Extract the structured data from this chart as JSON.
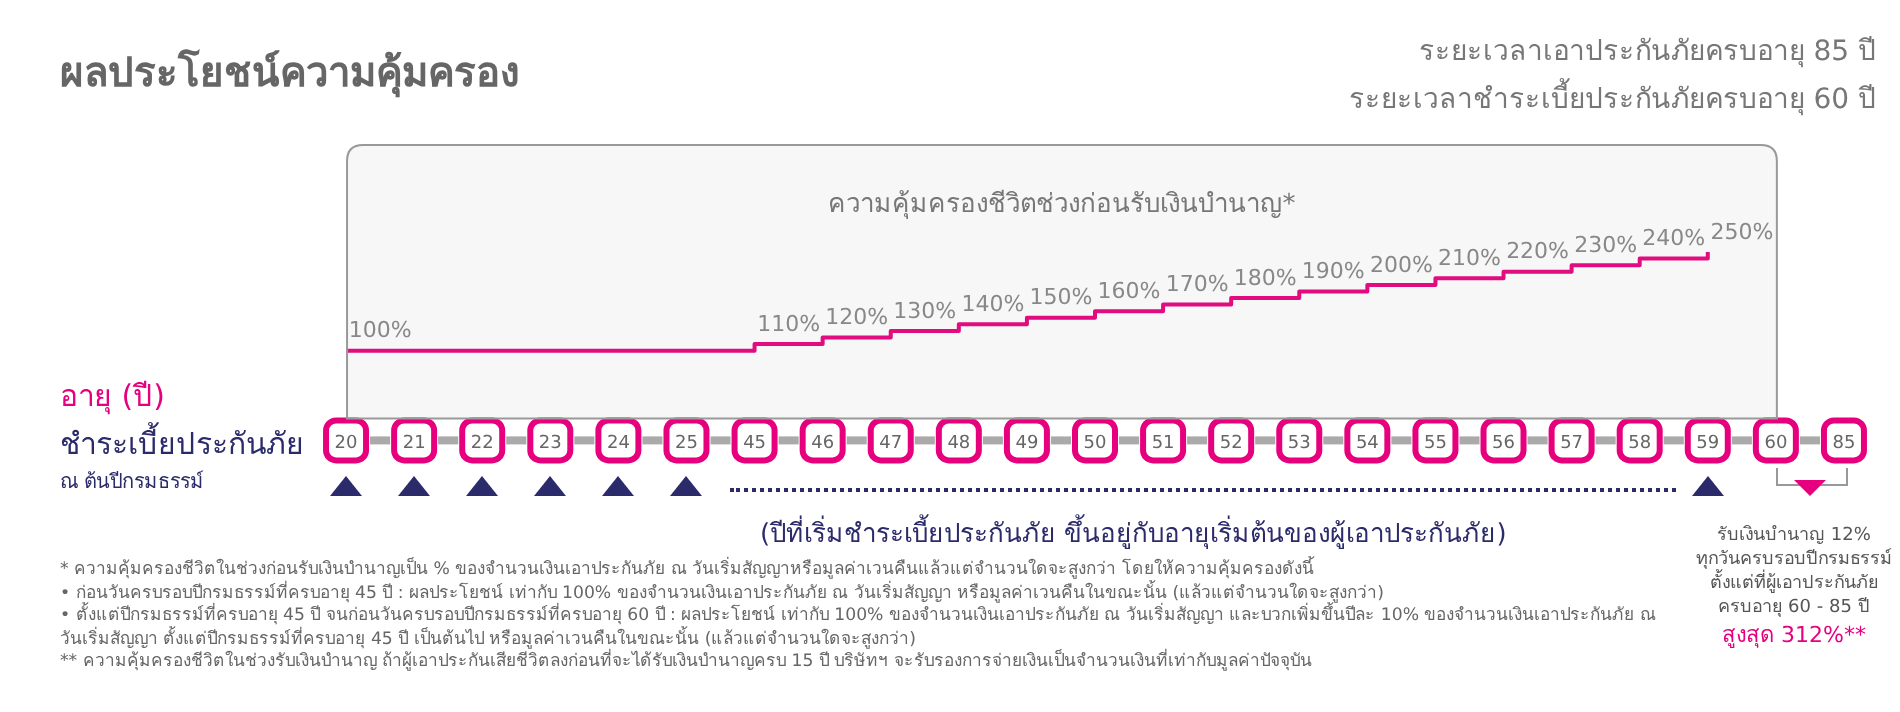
{
  "chart_data": {
    "type": "step",
    "title": "ผลประโยชน์ความคุ้มครอง",
    "bands": [
      {
        "axis": "x",
        "from": "20",
        "to": "60",
        "label": "ความคุ้มครองชีวิตช่วงก่อนรับเงินบำนาญ*",
        "color": "#999999"
      }
    ],
    "xlabel": "อายุ (ปี)",
    "categories": [
      "20",
      "21",
      "22",
      "23",
      "24",
      "25",
      "45",
      "46",
      "47",
      "48",
      "49",
      "50",
      "51",
      "52",
      "53",
      "54",
      "55",
      "56",
      "57",
      "58",
      "59",
      "60",
      "85"
    ],
    "series": [
      {
        "color": "#e6007e",
        "values": [
          100,
          100,
          100,
          100,
          100,
          100,
          110,
          120,
          130,
          140,
          150,
          160,
          170,
          180,
          190,
          200,
          210,
          220,
          230,
          240,
          250,
          null,
          null
        ],
        "value_labels": [
          "100%",
          null,
          null,
          null,
          null,
          null,
          "110%",
          "120%",
          "130%",
          "140%",
          "150%",
          "160%",
          "170%",
          "180%",
          "190%",
          "200%",
          "210%",
          "220%",
          "230%",
          "240%",
          "250%",
          null,
          null
        ]
      }
    ],
    "tick_labels": "x",
    "grid": false,
    "legend": false,
    "marker": "none",
    "line_style": "solid",
    "annotations": [
      "ระยะเวลาเอาประกันภัยครบอายุ 85 ปี",
      "ระยะเวลาชำระเบี้ยประกันภัยครบอายุ 60 ปี",
      "ชำระเบี้ยประกันภัย",
      "ณ ต้นปีกรมธรรม์",
      "(ปีที่เริ่มชำระเบี้ยประกันภัย ขึ้นอยู่กับอายุเริ่มต้นของผู้เอาประกันภัย)",
      "รับเงินบำนาญ 12%",
      "ทุกวันครบรอบปีกรมธรรม์",
      "ตั้งแต่ที่ผู้เอาประกันภัย",
      "ครบอายุ 60 - 85 ปี",
      "สูงสุด 312%**",
      "* ความคุ้มครองชีวิตในช่วงก่อนรับเงินบำนาญเป็น % ของจำนวนเงินเอาประกันภัย ณ วันเริ่มสัญญาหรือมูลค่าเวนคืนแล้วแต่จำนวนใดจะสูงกว่า โดยให้ความคุ้มครองดังนี้",
      "• ก่อนวันครบรอบปีกรมธรรม์ที่ครบอายุ 45 ปี : ผลประโยชน์ เท่ากับ 100% ของจำนวนเงินเอาประกันภัย ณ วันเริ่มสัญญา หรือมูลค่าเวนคืนในขณะนั้น (แล้วแต่จำนวนใดจะสูงกว่า)",
      "• ตั้งแต่ปีกรมธรรม์ที่ครบอายุ 45 ปี จนก่อนวันครบรอบปีกรมธรรม์ที่ครบอายุ 60 ปี : ผลประโยชน์ เท่ากับ 100% ของจำนวนเงินเอาประกันภัย ณ วันเริ่มสัญญา และบวกเพิ่มขึ้นปีละ 10% ของจำนวนเงินเอาประกันภัย ณ วันเริ่มสัญญา ตั้งแต่ปีกรมธรรม์ที่ครบอายุ 45 ปี เป็นต้นไป หรือมูลค่าเวนคืนในขณะนั้น (แล้วแต่จำนวนใดจะสูงกว่า)",
      "** ความคุ้มครองชีวิตในช่วงรับเงินบำนาญ ถ้าผู้เอาประกันเสียชีวิตลงก่อนที่จะได้รับเงินบำนาญครบ 15 ปี บริษัทฯ จะรับรองการจ่ายเงินเป็นจำนวนเงินที่เท่ากับมูลค่าปัจจุบัน"
    ]
  }
}
